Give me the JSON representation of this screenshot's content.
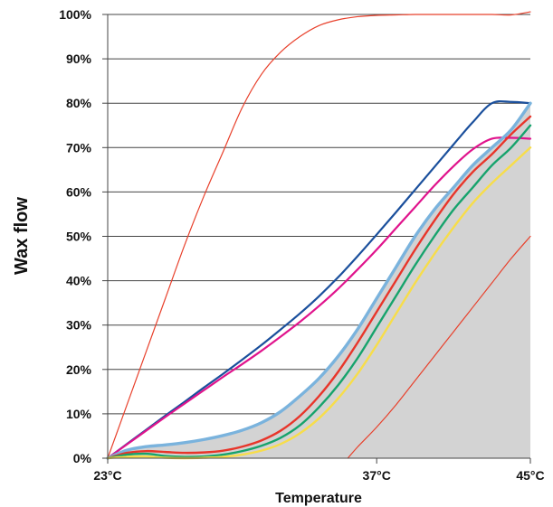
{
  "chart_data": {
    "type": "line",
    "xlabel": "Temperature",
    "ylabel": "Wax flow",
    "x_tick_labels": [
      "23°C",
      "37°C",
      "45°C"
    ],
    "x_ticks": [
      23,
      37,
      45
    ],
    "xlim": [
      23,
      45
    ],
    "y_tick_labels": [
      "0%",
      "10%",
      "20%",
      "30%",
      "40%",
      "50%",
      "60%",
      "70%",
      "80%",
      "90%",
      "100%"
    ],
    "ylim": [
      0,
      100
    ],
    "grid": "horizontal",
    "legend": "none",
    "colors": {
      "grid": "#444444",
      "shade": "#d3d3d3",
      "thin_red": "#e8402b",
      "dark_blue": "#1a4f9c",
      "magenta": "#e0138c",
      "light_blue": "#7ab3dd",
      "red": "#e8352a",
      "green": "#16a36c",
      "yellow": "#f7dd4a"
    },
    "shaded_area": {
      "x": [
        23,
        24,
        25,
        26,
        27,
        28,
        29,
        30,
        31,
        32,
        33,
        34,
        35,
        36,
        37,
        38,
        39,
        40,
        41,
        42,
        43,
        44,
        45
      ],
      "y": [
        0,
        1.8,
        2.6,
        3,
        3.5,
        4.2,
        5.1,
        6.3,
        8,
        10.5,
        14,
        18,
        23,
        29,
        36,
        43,
        50,
        56,
        61,
        66,
        70,
        74,
        80
      ]
    },
    "series": [
      {
        "color": "#e8402b",
        "stroke_width": 1.2,
        "x": [
          23,
          24,
          25,
          26,
          27,
          28,
          29,
          30,
          31,
          32,
          33,
          34,
          35,
          36,
          37,
          38,
          39,
          40,
          41,
          42,
          43,
          44,
          45
        ],
        "y": [
          0,
          12,
          24,
          36,
          48,
          59,
          69,
          79,
          86.5,
          91.5,
          95,
          97.5,
          98.8,
          99.5,
          99.8,
          99.9,
          100,
          100,
          100,
          100,
          100,
          99.9,
          100.6
        ]
      },
      {
        "color": "#e8402b",
        "stroke_width": 1.2,
        "x": [
          35.5,
          36,
          37,
          38,
          39,
          40,
          41,
          42,
          43,
          44,
          45
        ],
        "y": [
          0,
          2.5,
          7,
          12,
          17.5,
          23,
          28.5,
          34,
          39.5,
          45,
          50
        ]
      },
      {
        "color": "#1a4f9c",
        "stroke_width": 2.2,
        "x": [
          23,
          24,
          25,
          26,
          27,
          28,
          29,
          30,
          31,
          32,
          33,
          34,
          35,
          36,
          37,
          38,
          39,
          40,
          41,
          42,
          43,
          44,
          45
        ],
        "y": [
          0,
          3.2,
          6.4,
          9.6,
          12.7,
          15.9,
          19,
          22.2,
          25.5,
          29,
          32.6,
          36.5,
          40.8,
          45.5,
          50.4,
          55.4,
          60.5,
          65.6,
          70.7,
          75.7,
          80,
          80.3,
          80
        ]
      },
      {
        "color": "#e0138c",
        "stroke_width": 2.2,
        "x": [
          23,
          24,
          25,
          26,
          27,
          28,
          29,
          30,
          31,
          32,
          33,
          34,
          35,
          36,
          37,
          38,
          39,
          40,
          41,
          42,
          43,
          44,
          45
        ],
        "y": [
          0,
          3.1,
          6.2,
          9.3,
          12.3,
          15.3,
          18.3,
          21.2,
          24.2,
          27.4,
          30.7,
          34.3,
          38.2,
          42.5,
          47,
          51.8,
          56.6,
          61.4,
          65.8,
          69.6,
          72,
          72.2,
          72
        ]
      },
      {
        "color": "#7ab3dd",
        "stroke_width": 3.4,
        "x": [
          23,
          24,
          25,
          26,
          27,
          28,
          29,
          30,
          31,
          32,
          33,
          34,
          35,
          36,
          37,
          38,
          39,
          40,
          41,
          42,
          43,
          44,
          45
        ],
        "y": [
          0,
          1.8,
          2.6,
          3,
          3.5,
          4.2,
          5.1,
          6.3,
          8,
          10.5,
          14,
          18,
          23,
          29,
          36,
          43,
          50,
          56,
          61,
          66,
          70,
          74,
          80
        ]
      },
      {
        "color": "#e8352a",
        "stroke_width": 2.4,
        "x": [
          23,
          24,
          25,
          26,
          27,
          28,
          29,
          30,
          31,
          32,
          33,
          34,
          35,
          36,
          37,
          38,
          39,
          40,
          41,
          42,
          43,
          44,
          45
        ],
        "y": [
          0,
          1.2,
          1.6,
          1.4,
          1.2,
          1.3,
          1.7,
          2.6,
          4,
          6.2,
          9.5,
          14,
          19.5,
          26,
          33,
          40,
          47,
          53.5,
          59.5,
          64.5,
          68.5,
          73,
          77
        ]
      },
      {
        "color": "#16a36c",
        "stroke_width": 2.4,
        "x": [
          23,
          24,
          25,
          26,
          27,
          28,
          29,
          30,
          31,
          32,
          33,
          34,
          35,
          36,
          37,
          38,
          39,
          40,
          41,
          42,
          43,
          44,
          45
        ],
        "y": [
          0,
          0.8,
          1,
          0.5,
          0.3,
          0.4,
          0.8,
          1.6,
          2.8,
          4.6,
          7.4,
          11.5,
          16.5,
          22.5,
          29.5,
          36.5,
          43.5,
          50,
          56,
          61,
          66,
          70,
          75
        ]
      },
      {
        "color": "#f7dd4a",
        "stroke_width": 2.4,
        "x": [
          23,
          24,
          25,
          26,
          27,
          28,
          29,
          30,
          31,
          32,
          33,
          34,
          35,
          36,
          37,
          38,
          39,
          40,
          41,
          42,
          43,
          44,
          45
        ],
        "y": [
          0,
          0.3,
          0.4,
          0.1,
          0,
          0.1,
          0.3,
          0.8,
          1.7,
          3.2,
          5.6,
          9,
          13.5,
          19,
          25.5,
          32.5,
          39.5,
          46,
          52,
          57.5,
          62,
          66,
          70
        ]
      }
    ]
  }
}
